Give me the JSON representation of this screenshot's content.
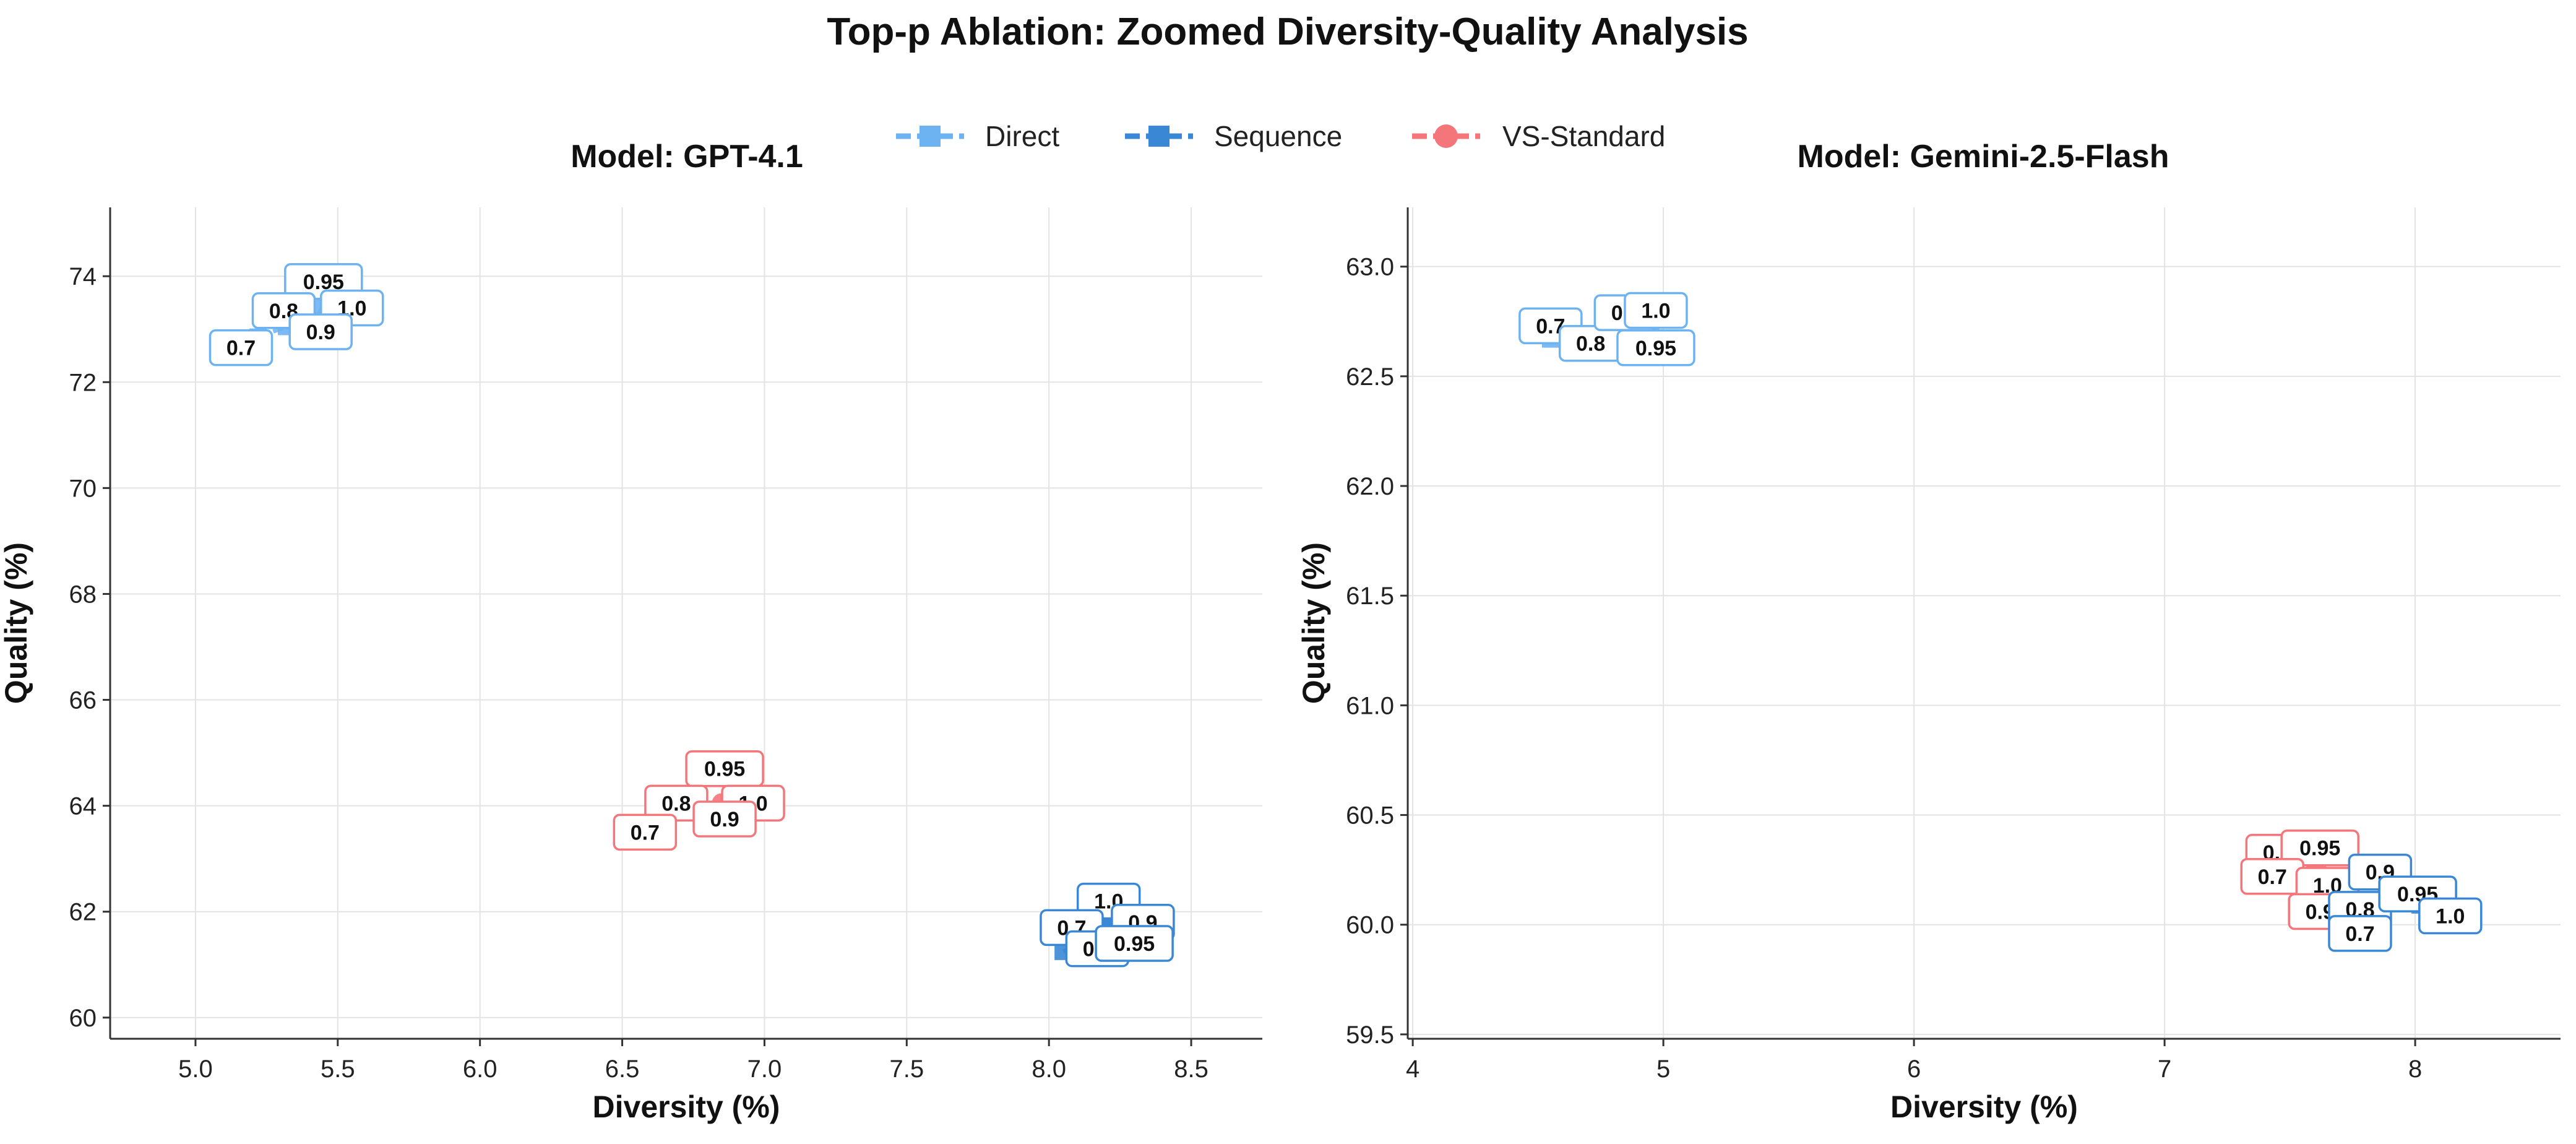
{
  "figure_title": "Top-p Ablation: Zoomed Diversity-Quality Analysis",
  "legend": {
    "placement": "top-center",
    "entries": [
      {
        "name": "Direct",
        "color": "#6db3f2",
        "marker": "square"
      },
      {
        "name": "Sequence",
        "color": "#3a87d6",
        "marker": "square"
      },
      {
        "name": "VS-Standard",
        "color": "#f4767a",
        "marker": "circle"
      }
    ]
  },
  "colors": {
    "direct": "#6db3f2",
    "sequence": "#3a87d6",
    "vs_standard": "#f4767a",
    "grid": "#e3e3e3",
    "axis": "#333333"
  },
  "chart_data": [
    {
      "type": "scatter",
      "title": "Model: GPT-4.1",
      "xlabel": "Diversity (%)",
      "ylabel": "Quality (%)",
      "xlim": [
        4.7,
        8.75
      ],
      "ylim": [
        59.6,
        75.3
      ],
      "xticks": [
        5.0,
        5.5,
        6.0,
        6.5,
        7.0,
        7.5,
        8.0,
        8.5
      ],
      "xtick_labels": [
        "5.0",
        "5.5",
        "6.0",
        "6.5",
        "7.0",
        "7.5",
        "8.0",
        "8.5"
      ],
      "yticks": [
        60,
        62,
        64,
        66,
        68,
        70,
        72,
        74
      ],
      "ytick_labels": [
        "60",
        "62",
        "64",
        "66",
        "68",
        "70",
        "72",
        "74"
      ],
      "grid": true,
      "series": [
        {
          "name": "Direct",
          "points": [
            {
              "top_p": "0.7",
              "x": 5.22,
              "y": 72.85
            },
            {
              "top_p": "0.8",
              "x": 5.32,
              "y": 73.05
            },
            {
              "top_p": "0.9",
              "x": 5.42,
              "y": 73.15
            },
            {
              "top_p": "0.95",
              "x": 5.45,
              "y": 73.45
            },
            {
              "top_p": "1.0",
              "x": 5.5,
              "y": 73.45
            }
          ]
        },
        {
          "name": "Sequence",
          "points": [
            {
              "top_p": "0.7",
              "x": 8.05,
              "y": 61.25
            },
            {
              "top_p": "0.8",
              "x": 8.15,
              "y": 61.45
            },
            {
              "top_p": "0.9",
              "x": 8.22,
              "y": 61.7
            },
            {
              "top_p": "0.95",
              "x": 8.25,
              "y": 61.55
            },
            {
              "top_p": "1.0",
              "x": 8.2,
              "y": 61.9
            }
          ]
        },
        {
          "name": "VS-Standard",
          "points": [
            {
              "top_p": "0.7",
              "x": 6.65,
              "y": 63.75
            },
            {
              "top_p": "0.8",
              "x": 6.72,
              "y": 63.95
            },
            {
              "top_p": "0.9",
              "x": 6.85,
              "y": 64.05
            },
            {
              "top_p": "0.95",
              "x": 6.88,
              "y": 64.15
            },
            {
              "top_p": "1.0",
              "x": 6.93,
              "y": 64.1
            }
          ]
        }
      ],
      "labels": [
        {
          "text": "0.95",
          "series": "Direct",
          "x": 5.45,
          "y": 73.9
        },
        {
          "text": "0.8",
          "series": "Direct",
          "x": 5.31,
          "y": 73.35
        },
        {
          "text": "1.0",
          "series": "Direct",
          "x": 5.55,
          "y": 73.4
        },
        {
          "text": "0.9",
          "series": "Direct",
          "x": 5.44,
          "y": 72.95
        },
        {
          "text": "0.7",
          "series": "Direct",
          "x": 5.16,
          "y": 72.65
        },
        {
          "text": "0.95",
          "series": "VS-Standard",
          "x": 6.86,
          "y": 64.7
        },
        {
          "text": "0.8",
          "series": "VS-Standard",
          "x": 6.69,
          "y": 64.05
        },
        {
          "text": "1.0",
          "series": "VS-Standard",
          "x": 6.96,
          "y": 64.05
        },
        {
          "text": "0.9",
          "series": "VS-Standard",
          "x": 6.86,
          "y": 63.75
        },
        {
          "text": "0.7",
          "series": "VS-Standard",
          "x": 6.58,
          "y": 63.5
        },
        {
          "text": "1.0",
          "series": "Sequence",
          "x": 8.21,
          "y": 62.2
        },
        {
          "text": "0.9",
          "series": "Sequence",
          "x": 8.33,
          "y": 61.8
        },
        {
          "text": "0.7",
          "series": "Sequence",
          "x": 8.08,
          "y": 61.7
        },
        {
          "text": "0.8",
          "series": "Sequence",
          "x": 8.17,
          "y": 61.3
        },
        {
          "text": "0.95",
          "series": "Sequence",
          "x": 8.3,
          "y": 61.4
        }
      ]
    },
    {
      "type": "scatter",
      "title": "Model: Gemini-2.5-Flash",
      "xlabel": "Diversity (%)",
      "ylabel": "Quality (%)",
      "xlim": [
        3.98,
        8.58
      ],
      "ylim": [
        59.48,
        63.27
      ],
      "xticks": [
        4,
        5,
        6,
        7,
        8
      ],
      "xtick_labels": [
        "4",
        "5",
        "6",
        "7",
        "8"
      ],
      "yticks": [
        59.5,
        60.0,
        60.5,
        61.0,
        61.5,
        62.0,
        62.5,
        63.0
      ],
      "ytick_labels": [
        "59.5",
        "60.0",
        "60.5",
        "61.0",
        "61.5",
        "62.0",
        "62.5",
        "63.0"
      ],
      "grid": true,
      "series": [
        {
          "name": "Direct",
          "points": [
            {
              "top_p": "0.7",
              "x": 4.55,
              "y": 62.67
            },
            {
              "top_p": "0.8",
              "x": 4.72,
              "y": 62.66
            },
            {
              "top_p": "0.9",
              "x": 4.86,
              "y": 62.69
            },
            {
              "top_p": "0.95",
              "x": 4.92,
              "y": 62.64
            },
            {
              "top_p": "1.0",
              "x": 4.95,
              "y": 62.73
            }
          ]
        },
        {
          "name": "Sequence",
          "points": [
            {
              "top_p": "0.7",
              "x": 7.8,
              "y": 60.02
            },
            {
              "top_p": "0.8",
              "x": 7.82,
              "y": 60.08
            },
            {
              "top_p": "0.9",
              "x": 7.88,
              "y": 60.2
            },
            {
              "top_p": "0.95",
              "x": 8.02,
              "y": 60.09
            },
            {
              "top_p": "1.0",
              "x": 8.1,
              "y": 60.04
            }
          ]
        },
        {
          "name": "VS-Standard",
          "points": [
            {
              "top_p": "0.7",
              "x": 7.5,
              "y": 60.24
            },
            {
              "top_p": "0.8",
              "x": 7.56,
              "y": 60.27
            },
            {
              "top_p": "0.9",
              "x": 7.6,
              "y": 60.15
            },
            {
              "top_p": "0.95",
              "x": 7.62,
              "y": 60.23
            },
            {
              "top_p": "1.0",
              "x": 7.63,
              "y": 60.19
            }
          ]
        }
      ],
      "labels": [
        {
          "text": "0.7",
          "series": "Direct",
          "x": 4.55,
          "y": 62.73
        },
        {
          "text": "0.8",
          "series": "Direct",
          "x": 4.71,
          "y": 62.65
        },
        {
          "text": "0.9",
          "series": "Direct",
          "x": 4.85,
          "y": 62.79
        },
        {
          "text": "1.0",
          "series": "Direct",
          "x": 4.97,
          "y": 62.8
        },
        {
          "text": "0.95",
          "series": "Direct",
          "x": 4.97,
          "y": 62.63
        },
        {
          "text": "0.8",
          "series": "VS-Standard",
          "x": 7.45,
          "y": 60.33
        },
        {
          "text": "0.95",
          "series": "VS-Standard",
          "x": 7.62,
          "y": 60.35
        },
        {
          "text": "0.7",
          "series": "VS-Standard",
          "x": 7.43,
          "y": 60.22
        },
        {
          "text": "1.0",
          "series": "VS-Standard",
          "x": 7.65,
          "y": 60.18
        },
        {
          "text": "0.9",
          "series": "VS-Standard",
          "x": 7.62,
          "y": 60.06
        },
        {
          "text": "0.9",
          "series": "Sequence",
          "x": 7.86,
          "y": 60.24
        },
        {
          "text": "0.8",
          "series": "Sequence",
          "x": 7.78,
          "y": 60.07
        },
        {
          "text": "0.7",
          "series": "Sequence",
          "x": 7.78,
          "y": 59.96
        },
        {
          "text": "0.95",
          "series": "Sequence",
          "x": 8.01,
          "y": 60.14
        },
        {
          "text": "1.0",
          "series": "Sequence",
          "x": 8.14,
          "y": 60.04
        }
      ]
    }
  ]
}
